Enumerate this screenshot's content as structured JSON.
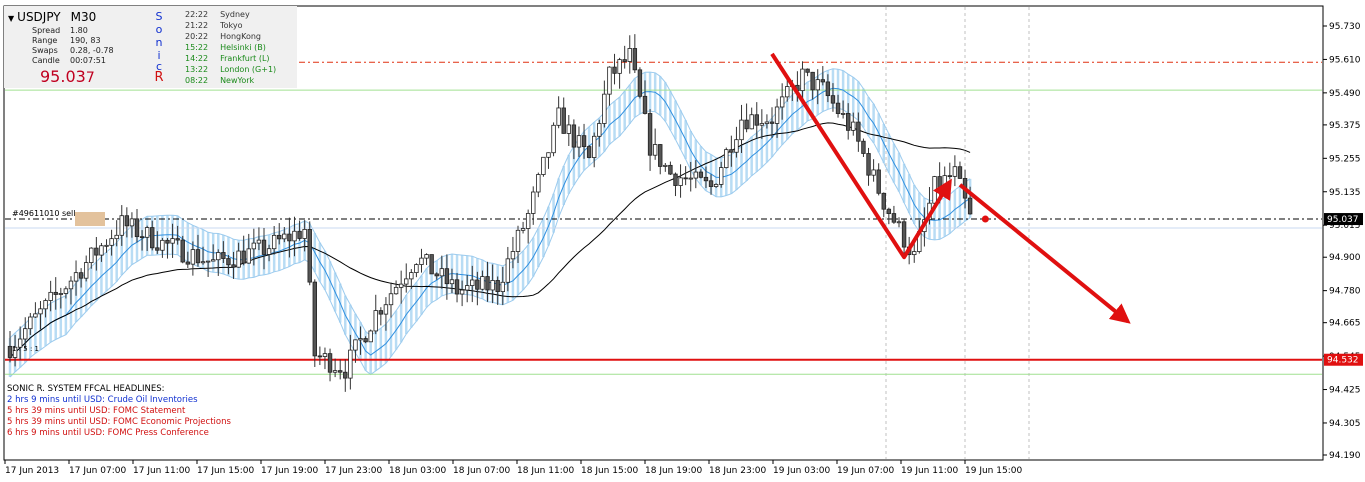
{
  "header": {
    "symbol": "USDJPY",
    "timeframe": "M30",
    "spread_label": "Spread",
    "spread_value": "1.80",
    "range_label": "Range",
    "range_value": "190, 83",
    "swaps_label": "Swaps",
    "swaps_value": "0.28, -0.78",
    "candle_label": "Candle",
    "candle_value": "00:07:51",
    "price_main": "95.03",
    "price_last": "7",
    "sonic_letters": [
      "S",
      "o",
      "n",
      "i",
      "c",
      "R"
    ]
  },
  "sessions": [
    {
      "time": "22:22",
      "name": "Sydney",
      "color": "#333333"
    },
    {
      "time": "21:22",
      "name": "Tokyo",
      "color": "#333333"
    },
    {
      "time": "20:22",
      "name": "HongKong",
      "color": "#333333"
    },
    {
      "time": "15:22",
      "name": "Helsinki  (B)",
      "color": "#1a8a1a"
    },
    {
      "time": "14:22",
      "name": "Frankfurt  (L)",
      "color": "#1a8a1a"
    },
    {
      "time": "13:22",
      "name": "London  (G+1)",
      "color": "#1a8a1a"
    },
    {
      "time": "08:22",
      "name": "NewYork",
      "color": "#1a8a1a"
    }
  ],
  "headlines": {
    "title": "SONIC R. SYSTEM   FFCAL HEADLINES:",
    "items": [
      {
        "text": "2 hrs 9 mins until USD: Crude Oil Inventories",
        "color": "#1030d0"
      },
      {
        "text": "5 hrs 39 mins until USD: FOMC Statement",
        "color": "#d01010"
      },
      {
        "text": "5 hrs 39 mins until USD: FOMC Economic Projections",
        "color": "#d01010"
      },
      {
        "text": "6 hrs 9 mins until USD: FOMC Press Conference",
        "color": "#d01010"
      }
    ]
  },
  "order_label": "#49611010 sell",
  "small_label": "1 : 5 : 1",
  "chart_data": {
    "type": "candlestick",
    "symbol": "USDJPY",
    "timeframe": "M30",
    "y_ticks": [
      "95.730",
      "95.610",
      "95.490",
      "95.375",
      "95.255",
      "95.135",
      "95.015",
      "94.900",
      "94.780",
      "94.665",
      "94.545",
      "94.425",
      "94.305",
      "94.190"
    ],
    "x_ticks": [
      "17 Jun 2013",
      "17 Jun 07:00",
      "17 Jun 11:00",
      "17 Jun 15:00",
      "17 Jun 19:00",
      "17 Jun 23:00",
      "18 Jun 03:00",
      "18 Jun 07:00",
      "18 Jun 11:00",
      "18 Jun 15:00",
      "18 Jun 19:00",
      "18 Jun 23:00",
      "19 Jun 03:00",
      "19 Jun 07:00",
      "19 Jun 11:00",
      "19 Jun 15:00"
    ],
    "ylim": [
      94.19,
      95.73
    ],
    "current_price": "95.037",
    "level_price": "94.532",
    "lines": [
      {
        "name": "bid",
        "price": 95.037,
        "style": "dash-dot",
        "color": "#000000"
      },
      {
        "name": "resistance",
        "price": 95.6,
        "style": "dash-dot",
        "color": "#e03010"
      },
      {
        "name": "upper",
        "price": 95.5,
        "style": "solid",
        "color": "#a0e090"
      },
      {
        "name": "support",
        "price": 94.532,
        "style": "solid",
        "color": "#e01010"
      },
      {
        "name": "lower",
        "price": 94.48,
        "style": "solid",
        "color": "#a0e090"
      },
      {
        "name": "pivot",
        "price": 95.005,
        "style": "solid",
        "color": "#c8d8f0"
      }
    ],
    "colors": {
      "bull": "#ffffff",
      "bear": "#555555",
      "wick": "#333333",
      "band": "#b8dcf4",
      "ema_blue": "#3090e0",
      "ema_black": "#000000",
      "arrow": "#e01010",
      "grid": "#c0c0c0",
      "price_box": "#000000",
      "level_box": "#e01010"
    }
  }
}
